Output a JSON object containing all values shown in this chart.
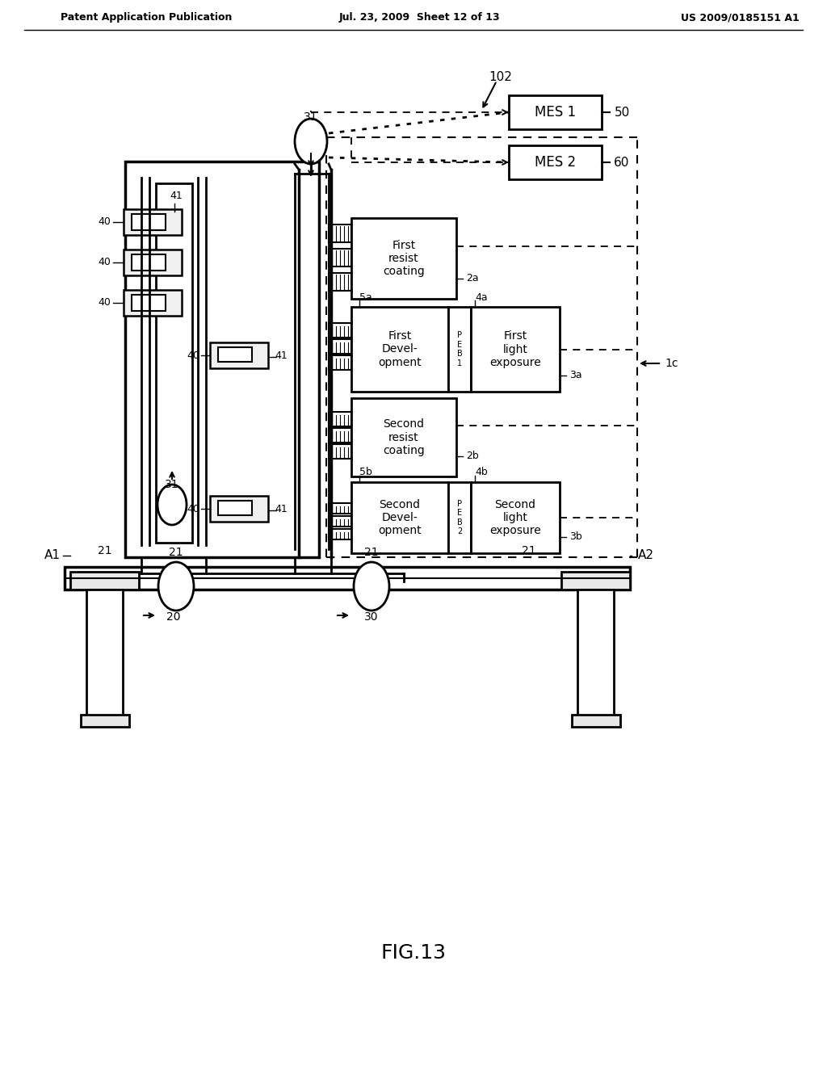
{
  "bg_color": "#ffffff",
  "header_left": "Patent Application Publication",
  "header_mid": "Jul. 23, 2009  Sheet 12 of 13",
  "header_right": "US 2009/0185151 A1",
  "fig_label": "FIG.13"
}
